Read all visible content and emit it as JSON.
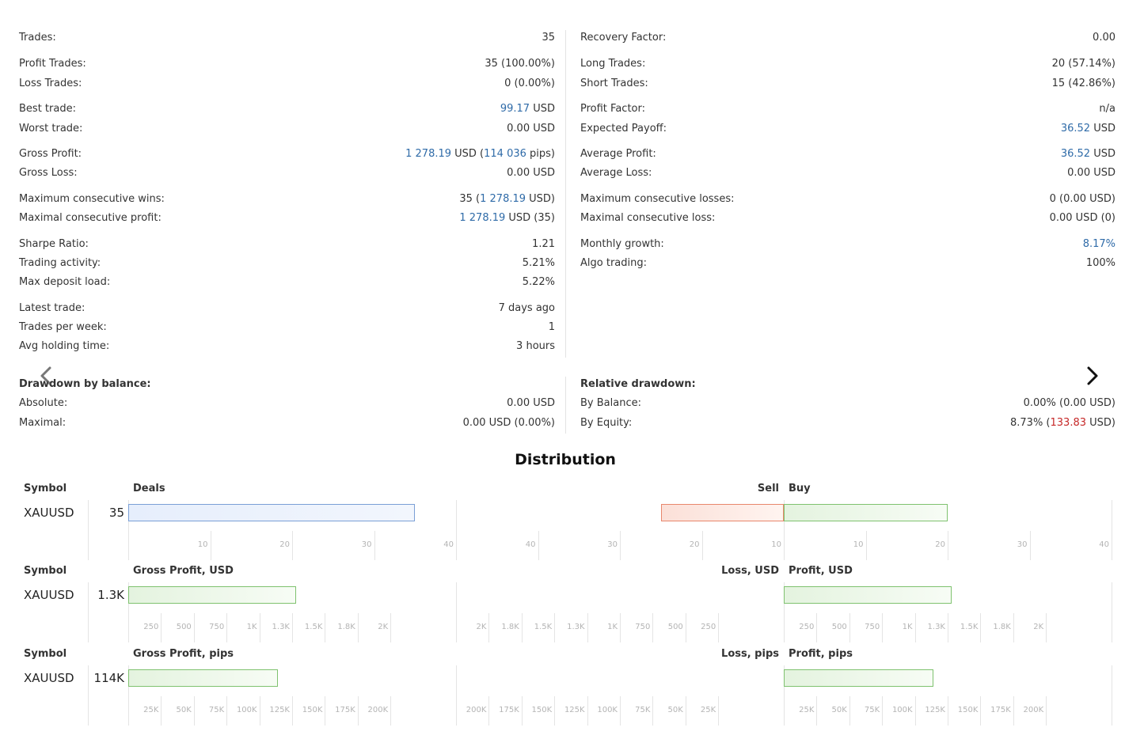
{
  "stats": {
    "left": [
      {
        "label": "Trades:",
        "value": [
          {
            "t": "35"
          }
        ]
      },
      {
        "label": "Profit Trades:",
        "value": [
          {
            "t": "35 (100.00%)"
          }
        ]
      },
      {
        "label": "Loss Trades:",
        "value": [
          {
            "t": "0 (0.00%)"
          }
        ]
      },
      {
        "label": "Best trade:",
        "value": [
          {
            "t": "99.17",
            "c": "blue"
          },
          {
            "t": " USD"
          }
        ]
      },
      {
        "label": "Worst trade:",
        "value": [
          {
            "t": "0.00 USD"
          }
        ]
      },
      {
        "label": "Gross Profit:",
        "value": [
          {
            "t": "1 278.19",
            "c": "blue"
          },
          {
            "t": " USD ("
          },
          {
            "t": "114 036",
            "c": "blue"
          },
          {
            "t": " pips)"
          }
        ]
      },
      {
        "label": "Gross Loss:",
        "value": [
          {
            "t": "0.00 USD"
          }
        ]
      },
      {
        "label": "Maximum consecutive wins:",
        "value": [
          {
            "t": "35 ("
          },
          {
            "t": "1 278.19",
            "c": "blue"
          },
          {
            "t": " USD)"
          }
        ]
      },
      {
        "label": "Maximal consecutive profit:",
        "value": [
          {
            "t": "1 278.19",
            "c": "blue"
          },
          {
            "t": " USD (35)"
          }
        ]
      },
      {
        "label": "Sharpe Ratio:",
        "value": [
          {
            "t": "1.21"
          }
        ]
      },
      {
        "label": "Trading activity:",
        "value": [
          {
            "t": "5.21%"
          }
        ]
      },
      {
        "label": "Max deposit load:",
        "value": [
          {
            "t": "5.22%"
          }
        ]
      },
      {
        "label": "Latest trade:",
        "value": [
          {
            "t": "7 days ago"
          }
        ]
      },
      {
        "label": "Trades per week:",
        "value": [
          {
            "t": "1"
          }
        ]
      },
      {
        "label": "Avg holding time:",
        "value": [
          {
            "t": "3 hours"
          }
        ]
      }
    ],
    "right": [
      {
        "label": "Recovery Factor:",
        "value": [
          {
            "t": "0.00"
          }
        ]
      },
      {
        "label": "Long Trades:",
        "value": [
          {
            "t": "20 (57.14%)"
          }
        ]
      },
      {
        "label": "Short Trades:",
        "value": [
          {
            "t": "15 (42.86%)"
          }
        ]
      },
      {
        "label": "Profit Factor:",
        "value": [
          {
            "t": "n/a"
          }
        ]
      },
      {
        "label": "Expected Payoff:",
        "value": [
          {
            "t": "36.52",
            "c": "blue"
          },
          {
            "t": " USD"
          }
        ]
      },
      {
        "label": "Average Profit:",
        "value": [
          {
            "t": "36.52",
            "c": "blue"
          },
          {
            "t": " USD"
          }
        ]
      },
      {
        "label": "Average Loss:",
        "value": [
          {
            "t": "0.00 USD"
          }
        ]
      },
      {
        "label": "Maximum consecutive losses:",
        "value": [
          {
            "t": "0 (0.00 USD)"
          }
        ]
      },
      {
        "label": "Maximal consecutive loss:",
        "value": [
          {
            "t": "0.00 USD (0)"
          }
        ]
      },
      {
        "label": "Monthly growth:",
        "value": [
          {
            "t": "8.17%",
            "c": "blue"
          }
        ]
      },
      {
        "label": "Algo trading:",
        "value": [
          {
            "t": "100%"
          }
        ]
      }
    ]
  },
  "drawdown": {
    "left_title": "Drawdown by balance:",
    "left": [
      {
        "label": "Absolute:",
        "value": [
          {
            "t": "0.00 USD"
          }
        ]
      },
      {
        "label": "Maximal:",
        "value": [
          {
            "t": "0.00 USD (0.00%)"
          }
        ]
      }
    ],
    "right_title": "Relative drawdown:",
    "right": [
      {
        "label": "By Balance:",
        "value": [
          {
            "t": "0.00% (0.00 USD)"
          }
        ]
      },
      {
        "label": "By Equity:",
        "value": [
          {
            "t": "8.73% ("
          },
          {
            "t": "133.83",
            "c": "red"
          },
          {
            "t": " USD)"
          }
        ]
      }
    ]
  },
  "nav": {
    "prev_icon": "chevron-left-icon",
    "next_icon": "chevron-right-icon"
  },
  "distribution": {
    "title": "Distribution",
    "rows": [
      {
        "symbol_header": "Symbol",
        "symbol": "XAUUSD",
        "total": "35",
        "left_header": "Deals",
        "left_value": 35,
        "left_max": 40,
        "left_style": "blue",
        "left_ticks": [
          "10",
          "20",
          "30",
          "40"
        ],
        "mid_ticks": [
          "40",
          "30",
          "20",
          "10"
        ],
        "right_ticks": [
          "10",
          "20",
          "30",
          "40"
        ],
        "neg_header": "Sell",
        "pos_header": "Buy",
        "neg_value": 15,
        "pos_value": 20,
        "side_max": 40
      },
      {
        "symbol_header": "Symbol",
        "symbol": "XAUUSD",
        "total": "1.3K",
        "left_header": "Gross Profit, USD",
        "left_value": 1278.19,
        "left_max": 2500,
        "left_style": "green",
        "left_ticks": [
          "250",
          "500",
          "750",
          "1K",
          "1.3K",
          "1.5K",
          "1.8K",
          "2K"
        ],
        "mid_ticks": [
          "2K",
          "1.8K",
          "1.5K",
          "1.3K",
          "1K",
          "750",
          "500",
          "250"
        ],
        "right_ticks": [
          "250",
          "500",
          "750",
          "1K",
          "1.3K",
          "1.5K",
          "1.8K",
          "2K"
        ],
        "neg_header": "Loss, USD",
        "pos_header": "Profit, USD",
        "neg_value": 0,
        "pos_value": 1278.19,
        "side_max": 2500
      },
      {
        "symbol_header": "Symbol",
        "symbol": "XAUUSD",
        "total": "114K",
        "left_header": "Gross Profit, pips",
        "left_value": 114036,
        "left_max": 250000,
        "left_style": "green",
        "left_ticks": [
          "25K",
          "50K",
          "75K",
          "100K",
          "125K",
          "150K",
          "175K",
          "200K"
        ],
        "mid_ticks": [
          "200K",
          "175K",
          "150K",
          "125K",
          "100K",
          "75K",
          "50K",
          "25K"
        ],
        "right_ticks": [
          "25K",
          "50K",
          "75K",
          "100K",
          "125K",
          "150K",
          "175K",
          "200K"
        ],
        "neg_header": "Loss, pips",
        "pos_header": "Profit, pips",
        "neg_value": 0,
        "pos_value": 114036,
        "side_max": 250000
      }
    ]
  }
}
